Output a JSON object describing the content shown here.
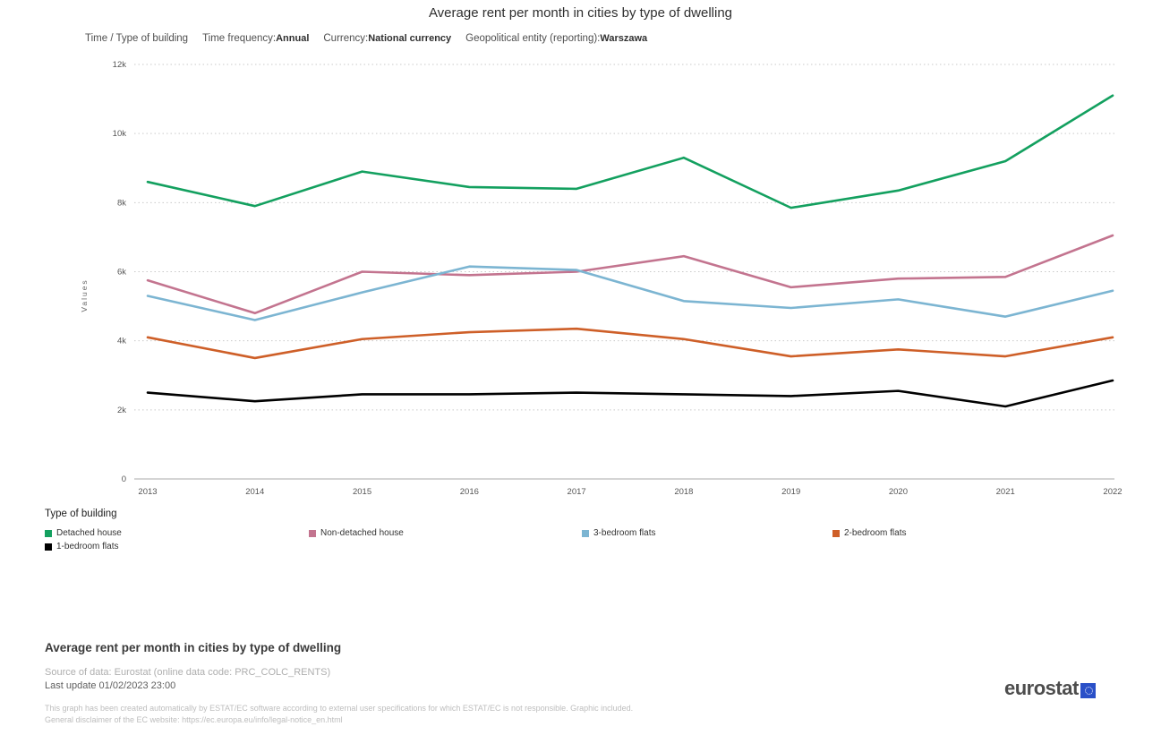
{
  "header": {
    "title": "Average rent per month in cities by type of dwelling",
    "filters": {
      "dimension_label": "Time / Type of building",
      "time_frequency_label": "Time frequency:",
      "time_frequency_value": "Annual",
      "currency_label": "Currency:",
      "currency_value": "National currency",
      "geo_label": "Geopolitical entity (reporting):",
      "geo_value": "Warszawa"
    }
  },
  "chart_data": {
    "type": "line",
    "title": "Average rent per month in cities by type of dwelling",
    "xlabel": "",
    "ylabel": "Values",
    "x": [
      2013,
      2014,
      2015,
      2016,
      2017,
      2018,
      2019,
      2020,
      2021,
      2022
    ],
    "ylim": [
      0,
      12000
    ],
    "yticks": [
      0,
      2000,
      4000,
      6000,
      8000,
      10000,
      12000
    ],
    "ytick_labels": [
      "0",
      "2k",
      "4k",
      "6k",
      "8k",
      "10k",
      "12k"
    ],
    "grid": "dotted-horizontal",
    "legend_title": "Type of building",
    "legend_position": "bottom",
    "series": [
      {
        "name": "Detached house",
        "color": "#13a05f",
        "values": [
          8600,
          7900,
          8900,
          8450,
          8400,
          9300,
          7850,
          8350,
          9200,
          11100
        ]
      },
      {
        "name": "Non-detached house",
        "color": "#c3748f",
        "values": [
          5750,
          4800,
          6000,
          5900,
          6000,
          6450,
          5550,
          5800,
          5850,
          7050
        ]
      },
      {
        "name": "3-bedroom flats",
        "color": "#7cb5d2",
        "values": [
          5300,
          4600,
          5400,
          6150,
          6050,
          5150,
          4950,
          5200,
          4700,
          5450
        ]
      },
      {
        "name": "2-bedroom flats",
        "color": "#ce5f28",
        "values": [
          4100,
          3500,
          4050,
          4250,
          4350,
          4050,
          3550,
          3750,
          3550,
          4100
        ]
      },
      {
        "name": "1-bedroom flats",
        "color": "#000000",
        "values": [
          2500,
          2250,
          2450,
          2450,
          2500,
          2450,
          2400,
          2550,
          2100,
          2850
        ]
      }
    ]
  },
  "footer": {
    "heading": "Average rent per month in cities by type of dwelling",
    "source": "Source of data: Eurostat (online data code: PRC_COLC_RENTS)",
    "last_update": "Last update 01/02/2023 23:00",
    "disclaimer1": "This graph has been created automatically by ESTAT/EC software according to external user specifications for which ESTAT/EC is not responsible. Graphic included.",
    "disclaimer2": "General disclaimer of the EC website: https://ec.europa.eu/info/legal-notice_en.html",
    "logo_text": "eurostat"
  }
}
